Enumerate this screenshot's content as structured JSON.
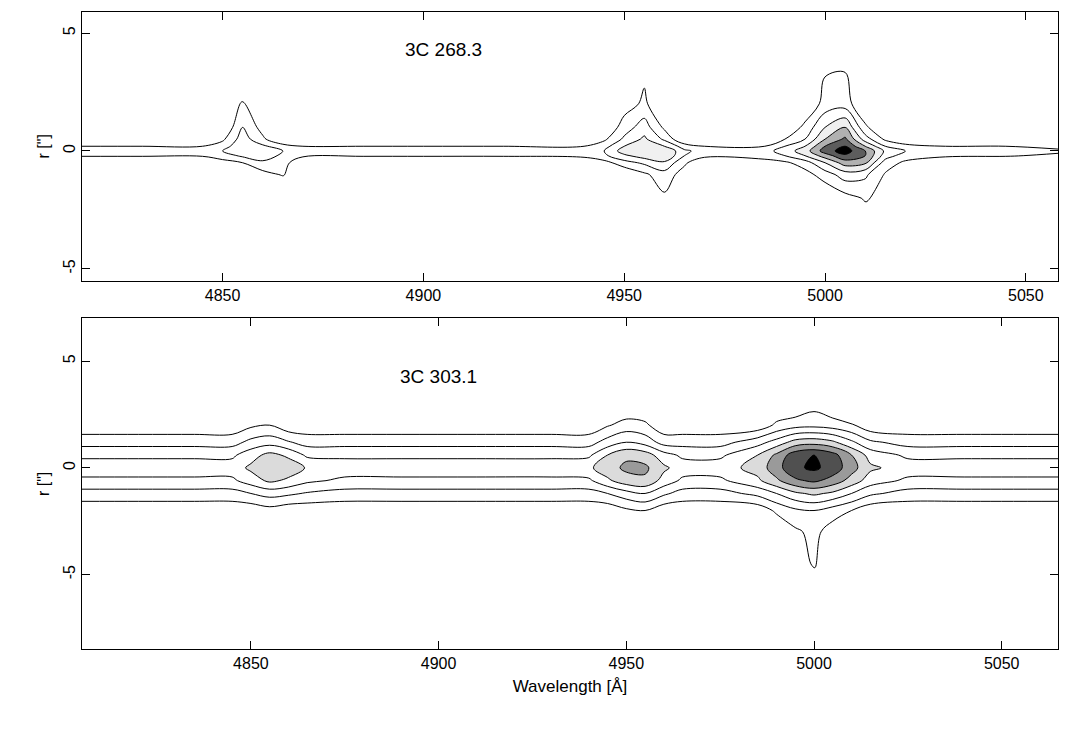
{
  "chart_data": [
    {
      "type": "contour",
      "annotation": {
        "text": "3C 268.3",
        "x": 4905,
        "y": 4.3
      },
      "y_label": "r [\"]",
      "color": "#000000",
      "grid": false,
      "xlim": [
        4815,
        5058
      ],
      "xticks": [
        4850,
        4900,
        4950,
        5000,
        5050
      ],
      "ylim": [
        -5.5,
        5.9
      ],
      "yticks": [
        -5,
        0,
        5
      ],
      "levels": [
        1,
        2,
        3,
        4,
        5,
        6
      ],
      "zlim": [
        0,
        7
      ],
      "x": [
        4815,
        4830,
        4845,
        4850,
        4855,
        4860,
        4865,
        4870,
        4885,
        4900,
        4920,
        4940,
        4945,
        4950,
        4955,
        4960,
        4965,
        4970,
        4985,
        4990,
        4995,
        5000,
        5005,
        5010,
        5015,
        5020,
        5030,
        5045,
        5058
      ],
      "y": [
        -5.5,
        -2,
        -1,
        -0.5,
        -0.2,
        0,
        0.2,
        0.5,
        1,
        2,
        6
      ],
      "z": [
        [
          0,
          0,
          0,
          0,
          0,
          0,
          0,
          0,
          0,
          0,
          0,
          0,
          0,
          0,
          0,
          0,
          0,
          0,
          0,
          0,
          0,
          0,
          0,
          0,
          0,
          0,
          0,
          0,
          0
        ],
        [
          0,
          0,
          0,
          0,
          0,
          0,
          0,
          0,
          0,
          0,
          0,
          0,
          0,
          0,
          0,
          0.8,
          0,
          0,
          0,
          0,
          0,
          0,
          0.6,
          1.1,
          0,
          0,
          0,
          0,
          0
        ],
        [
          0,
          0,
          0,
          0,
          0,
          0.6,
          1.1,
          0,
          0,
          0,
          0,
          0,
          0,
          0,
          0.8,
          1.6,
          0.5,
          0,
          0,
          0,
          0.6,
          1.5,
          2.5,
          2.2,
          0.9,
          0,
          0,
          0,
          0
        ],
        [
          0,
          0,
          0,
          0.6,
          1.0,
          1.8,
          1.5,
          0,
          0,
          0,
          0,
          0,
          0.6,
          1.6,
          2.2,
          2.8,
          1.2,
          0,
          0.5,
          0.8,
          1.5,
          3,
          4.5,
          4.2,
          1.5,
          0.8,
          0,
          0,
          0
        ],
        [
          1.1,
          1.1,
          1.1,
          1.5,
          2.2,
          2.5,
          1.8,
          1.2,
          1.1,
          1.1,
          1.1,
          1.3,
          1.8,
          2.8,
          3.5,
          4,
          2,
          1.3,
          1.5,
          2,
          3,
          4.5,
          5.8,
          5,
          2.5,
          1.5,
          1.2,
          1.1,
          0.8
        ],
        [
          1.6,
          1.6,
          1.6,
          2,
          3,
          3,
          2,
          1.7,
          1.6,
          1.6,
          1.6,
          1.6,
          2,
          3.5,
          4,
          4,
          2.2,
          1.6,
          1.6,
          2.5,
          3.5,
          5.5,
          6.5,
          5,
          2.8,
          2,
          1.6,
          1.6,
          1.2
        ],
        [
          1.0,
          1.0,
          1.0,
          1.5,
          2.8,
          2.2,
          1.4,
          1.0,
          1.0,
          1.0,
          1.0,
          1.0,
          1.6,
          3,
          3.8,
          3,
          1.5,
          1.0,
          1.0,
          2,
          3,
          5,
          6,
          4,
          2,
          1.4,
          1.0,
          1.0,
          0.7
        ],
        [
          0,
          0,
          0,
          0.8,
          2.5,
          1.2,
          0,
          0,
          0,
          0,
          0,
          0,
          0.8,
          2.2,
          3.2,
          1.8,
          0,
          0,
          0,
          1,
          2,
          4,
          5.2,
          2.5,
          0.8,
          0,
          0,
          0,
          0
        ],
        [
          0,
          0,
          0,
          0,
          2,
          0.6,
          0,
          0,
          0,
          0,
          0,
          0,
          0,
          1.5,
          2.5,
          0.8,
          0,
          0,
          0,
          0,
          1.3,
          3,
          4,
          1.2,
          0,
          0,
          0,
          0,
          0
        ],
        [
          0,
          0,
          0,
          0,
          1.1,
          0,
          0,
          0,
          0,
          0,
          0,
          0,
          0,
          0.5,
          1.2,
          0,
          0,
          0,
          0,
          0,
          0,
          1.4,
          1.5,
          0,
          0,
          0,
          0,
          0,
          0
        ],
        [
          0,
          0,
          0,
          0,
          0,
          0,
          0,
          0,
          0,
          0,
          0,
          0,
          0,
          0,
          0,
          0,
          0,
          0,
          0,
          0,
          0,
          0,
          0,
          0,
          0,
          0,
          0,
          0,
          0
        ]
      ]
    },
    {
      "type": "contour",
      "annotation": {
        "text": "3C 303.1",
        "x": 4900,
        "y": 4.3
      },
      "y_label": "r [\"]",
      "x_label": "Wavelength [Å]",
      "color": "#000000",
      "grid": false,
      "xlim": [
        4805,
        5065
      ],
      "xticks": [
        4850,
        4900,
        4950,
        5000,
        5050
      ],
      "ylim": [
        -8.5,
        7
      ],
      "yticks": [
        -5,
        0,
        5
      ],
      "levels": [
        1,
        2,
        3,
        4,
        5,
        6,
        7
      ],
      "zlim": [
        0,
        8
      ],
      "x": [
        4805,
        4820,
        4835,
        4845,
        4850,
        4855,
        4860,
        4865,
        4875,
        4890,
        4910,
        4930,
        4940,
        4945,
        4950,
        4955,
        4960,
        4965,
        4975,
        4985,
        4990,
        4995,
        5000,
        5005,
        5010,
        5015,
        5025,
        5040,
        5065
      ],
      "y": [
        -8.5,
        -4.5,
        -3,
        -2,
        -1.2,
        -0.6,
        0,
        0.6,
        1.2,
        2,
        3,
        7
      ],
      "z": [
        [
          0,
          0,
          0,
          0,
          0,
          0,
          0,
          0,
          0,
          0,
          0,
          0,
          0,
          0,
          0,
          0,
          0,
          0,
          0,
          0,
          0,
          0,
          0,
          0,
          0,
          0,
          0,
          0,
          0
        ],
        [
          0,
          0,
          0,
          0,
          0,
          0,
          0,
          0,
          0,
          0,
          0,
          0,
          0,
          0,
          0,
          0,
          0,
          0,
          0,
          0,
          0,
          0.5,
          1.1,
          0,
          0,
          0,
          0,
          0,
          0
        ],
        [
          0,
          0,
          0,
          0,
          0,
          0,
          0,
          0,
          0,
          0,
          0,
          0,
          0,
          0,
          0,
          0,
          0,
          0,
          0,
          0,
          0,
          0.8,
          1.3,
          0.5,
          0,
          0,
          0,
          0,
          0
        ],
        [
          0.3,
          0.3,
          0.3,
          0.3,
          0.3,
          0.6,
          0.3,
          0.3,
          0.3,
          0.3,
          0.3,
          0.3,
          0.3,
          0.3,
          0.8,
          1.0,
          0.3,
          0.3,
          0.3,
          0.3,
          1.2,
          1.8,
          2,
          1.5,
          1,
          0.3,
          0.3,
          0.3,
          0.3
        ],
        [
          1.6,
          1.6,
          1.6,
          1.6,
          2,
          2.4,
          2.2,
          1.9,
          1.6,
          1.6,
          1.6,
          1.6,
          1.6,
          2,
          2.6,
          3,
          2.2,
          1.6,
          1.6,
          2.3,
          3,
          3.8,
          4.2,
          3.8,
          3,
          2.2,
          1.6,
          1.6,
          1.6
        ],
        [
          2.8,
          2.8,
          2.8,
          2.8,
          3.5,
          4.2,
          3.8,
          3.2,
          2.8,
          2.8,
          2.8,
          2.8,
          2.8,
          3.8,
          4.6,
          4.8,
          3.6,
          2.8,
          2.8,
          3.8,
          4.8,
          5.8,
          6.2,
          5.6,
          4.6,
          3.5,
          2.8,
          2.8,
          2.8
        ],
        [
          3.5,
          3.5,
          3.5,
          3.5,
          4.2,
          4.9,
          4.6,
          3.9,
          3.5,
          3.5,
          3.5,
          3.5,
          3.8,
          4.6,
          5.2,
          5.2,
          4.2,
          3.5,
          3.5,
          4.4,
          5.6,
          6.8,
          7.2,
          6.6,
          5.4,
          4.2,
          3.5,
          3.5,
          3.5
        ],
        [
          2.8,
          2.8,
          2.8,
          2.8,
          3.6,
          4.3,
          3.8,
          2.8,
          2.8,
          2.8,
          2.8,
          2.8,
          2.8,
          4,
          4.8,
          4.5,
          3.4,
          2.8,
          2.8,
          4,
          5.2,
          6.6,
          7,
          6.4,
          5,
          3.6,
          2.8,
          2.8,
          2.8
        ],
        [
          1.6,
          1.6,
          1.6,
          1.6,
          2.3,
          2.6,
          2.1,
          1.6,
          1.6,
          1.6,
          1.6,
          1.6,
          1.6,
          2.4,
          3,
          2.6,
          1.6,
          1.6,
          1.6,
          2.6,
          3.4,
          4.4,
          4.6,
          4.2,
          3.2,
          2.2,
          1.6,
          1.6,
          1.6
        ],
        [
          0.3,
          0.3,
          0.3,
          0.3,
          0.8,
          1,
          0.3,
          0.3,
          0.3,
          0.3,
          0.3,
          0.3,
          0.3,
          0.9,
          1.4,
          1.2,
          0.3,
          0.3,
          0.3,
          0.3,
          1.2,
          1.6,
          1.7,
          1.5,
          1.1,
          0.3,
          0.3,
          0.3,
          0.3
        ],
        [
          0,
          0,
          0,
          0,
          0,
          0,
          0,
          0,
          0,
          0,
          0,
          0,
          0,
          0,
          0,
          0,
          0,
          0,
          0,
          0,
          0,
          0,
          0.6,
          0,
          0,
          0,
          0,
          0,
          0
        ],
        [
          0,
          0,
          0,
          0,
          0,
          0,
          0,
          0,
          0,
          0,
          0,
          0,
          0,
          0,
          0,
          0,
          0,
          0,
          0,
          0,
          0,
          0,
          0,
          0,
          0,
          0,
          0,
          0,
          0
        ]
      ]
    }
  ]
}
